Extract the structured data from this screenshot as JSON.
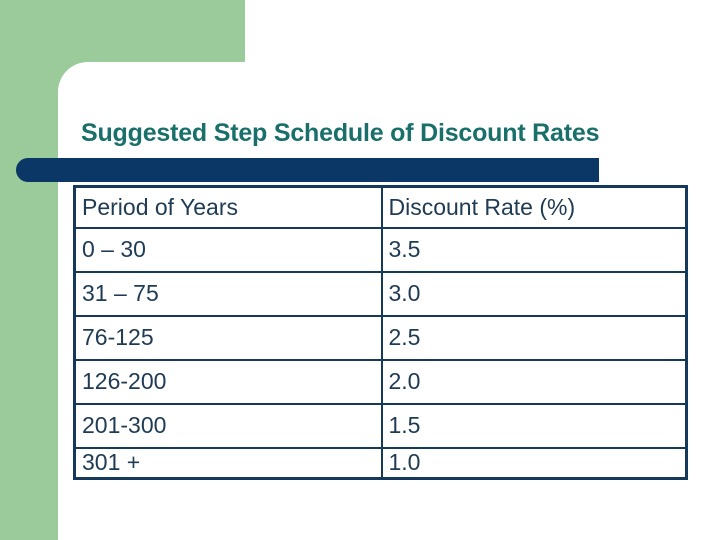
{
  "slide": {
    "title": "Suggested Step Schedule of Discount Rates"
  },
  "table": {
    "headers": [
      "Period of Years",
      "Discount Rate (%)"
    ],
    "rows": [
      [
        "0 – 30",
        "3.5"
      ],
      [
        "31 – 75",
        "3.0"
      ],
      [
        "76-125",
        "2.5"
      ],
      [
        "126-200",
        "2.0"
      ],
      [
        "201-300",
        "1.5"
      ],
      [
        "301 +",
        "1.0"
      ]
    ]
  },
  "colors": {
    "green": "#9BCB9B",
    "navy": "#0A3765",
    "table_border": "#15395B",
    "table_text": "#203C55",
    "title_teal": "#196F6A"
  }
}
